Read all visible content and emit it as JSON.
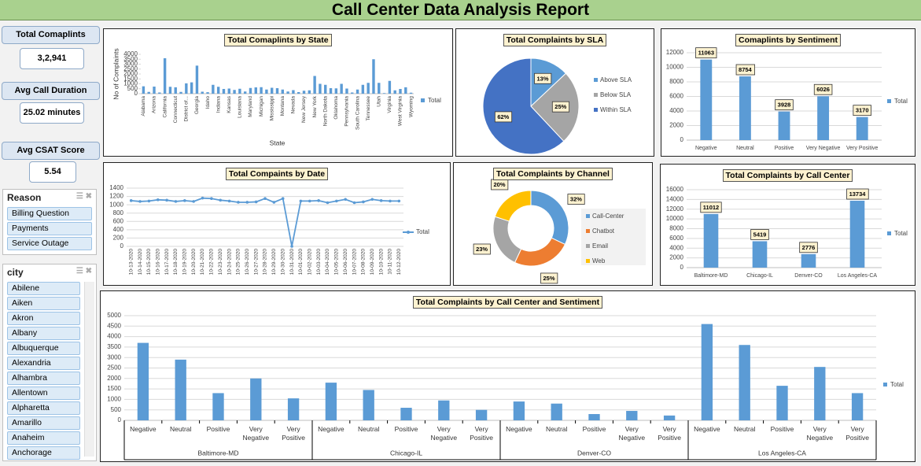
{
  "title": "Call Center Data Analysis Report",
  "kpis": [
    {
      "label": "Total Comaplints",
      "value": "3,2,941"
    },
    {
      "label": "Avg Call Duration",
      "value": "25.02 minutes"
    },
    {
      "label": "Avg CSAT Score",
      "value": "5.54"
    }
  ],
  "slicers": [
    {
      "title": "Reason",
      "items": [
        "Billing Question",
        "Payments",
        "Service Outage"
      ]
    },
    {
      "title": "city",
      "items": [
        "Abilene",
        "Aiken",
        "Akron",
        "Albany",
        "Albuquerque",
        "Alexandria",
        "Alhambra",
        "Allentown",
        "Alpharetta",
        "Amarillo",
        "Anaheim",
        "Anchorage"
      ]
    }
  ],
  "chart_data": [
    {
      "type": "bar",
      "title": "Total Comaplints by State",
      "y_label": "No of Complaints",
      "x_label": "State",
      "categories": [
        "Alabama",
        null,
        "Arizona",
        null,
        "California",
        null,
        "Connecticut",
        null,
        "District of...",
        null,
        "Georgia",
        null,
        "Idaho",
        null,
        "Indiana",
        null,
        "Kansas",
        null,
        "Louisiana",
        null,
        "Maryland",
        null,
        "Michigan",
        null,
        "Mississippi",
        null,
        "Montana",
        null,
        "Nevada",
        null,
        "New Jersey",
        null,
        "New York",
        null,
        "North Dakota",
        null,
        "Oklahoma",
        null,
        "Pennsylvania",
        null,
        "South Carolina",
        null,
        "Tennessee",
        null,
        "Utah",
        null,
        "Virginia",
        null,
        "West Virginia",
        null,
        "Wyoming"
      ],
      "series": [
        {
          "name": "Total",
          "color": "#5b9bd5",
          "values": [
            750,
            180,
            720,
            120,
            3600,
            700,
            650,
            180,
            1050,
            1150,
            2850,
            200,
            150,
            900,
            700,
            480,
            520,
            380,
            500,
            220,
            580,
            640,
            660,
            420,
            600,
            560,
            420,
            220,
            360,
            160,
            300,
            340,
            1800,
            1000,
            900,
            560,
            540,
            1000,
            520,
            120,
            420,
            900,
            1100,
            3500,
            1100,
            60,
            1300,
            340,
            480,
            650,
            100
          ]
        }
      ],
      "ylim": [
        0,
        4000
      ],
      "yticks": [
        0,
        500,
        1000,
        1500,
        2000,
        2500,
        3000,
        3500,
        4000
      ],
      "grid": false,
      "legend": "right"
    },
    {
      "type": "pie",
      "title": "Total Complaints by SLA",
      "categories": [
        "Above SLA",
        "Below SLA",
        "Within SLA"
      ],
      "values": [
        13,
        25,
        62
      ],
      "value_labels": [
        "13%",
        "25%",
        "62%"
      ],
      "colors": [
        "#5b9bd5",
        "#a5a5a5",
        "#4472c4"
      ],
      "legend": "right"
    },
    {
      "type": "bar",
      "title": "Comaplints by Sentiment",
      "categories": [
        "Negative",
        "Neutral",
        "Positive",
        "Very Negative",
        "Very Positive"
      ],
      "series": [
        {
          "name": "Total",
          "color": "#5b9bd5",
          "values": [
            11063,
            8754,
            3928,
            6026,
            3170
          ]
        }
      ],
      "ylim": [
        0,
        12000
      ],
      "yticks": [
        0,
        2000,
        4000,
        6000,
        8000,
        10000,
        12000
      ],
      "grid": true,
      "data_labels": true,
      "legend": "right"
    },
    {
      "type": "line",
      "title": "Total Compaints by Date",
      "categories": [
        "10-13-2020",
        "10-14-2020",
        "10-15-2020",
        "10-16-2020",
        "10-17-2020",
        "10-18-2020",
        "10-19-2020",
        "10-20-2020",
        "10-21-2020",
        "10-22-2020",
        "10-23-2020",
        "10-24-2020",
        "10-25-2020",
        "10-26-2020",
        "10-27-2020",
        "10-28-2020",
        "10-29-2020",
        "10-30-2020",
        "10-31-2020",
        "10-01-2020",
        "10-02-2020",
        "10-03-2020",
        "10-04-2020",
        "10-05-2020",
        "10-06-2020",
        "10-07-2020",
        "10-08-2020",
        "10-09-2020",
        "10-10-2020",
        "10-11-2020",
        "10-12-2020"
      ],
      "series": [
        {
          "name": "Total",
          "color": "#5b9bd5",
          "values": [
            1100,
            1080,
            1090,
            1120,
            1110,
            1080,
            1100,
            1080,
            1160,
            1150,
            1110,
            1090,
            1060,
            1060,
            1070,
            1150,
            1060,
            1150,
            0,
            1090,
            1090,
            1100,
            1050,
            1090,
            1130,
            1050,
            1070,
            1130,
            1100,
            1090,
            1090
          ]
        }
      ],
      "ylim": [
        0,
        1400
      ],
      "yticks": [
        0,
        200,
        400,
        600,
        800,
        1000,
        1200,
        1400
      ],
      "grid": true,
      "legend": "right"
    },
    {
      "type": "doughnut",
      "title": "Total Complaints by Channel",
      "categories": [
        "Call-Center",
        "Chatbot",
        "Email",
        "Web"
      ],
      "values": [
        32,
        25,
        23,
        20
      ],
      "value_labels": [
        "32%",
        "25%",
        "23%",
        "20%"
      ],
      "colors": [
        "#5b9bd5",
        "#ed7d31",
        "#a5a5a5",
        "#ffc000"
      ],
      "legend": "right"
    },
    {
      "type": "bar",
      "title": "Total Complaints by Call Center",
      "categories": [
        "Baltimore-MD",
        "Chicago-IL",
        "Denver-CO",
        "Los Angeles-CA"
      ],
      "series": [
        {
          "name": "Total",
          "color": "#5b9bd5",
          "values": [
            11012,
            5419,
            2776,
            13734
          ]
        }
      ],
      "ylim": [
        0,
        16000
      ],
      "yticks": [
        0,
        2000,
        4000,
        6000,
        8000,
        10000,
        12000,
        14000,
        16000
      ],
      "grid": true,
      "data_labels": true,
      "legend": "right"
    },
    {
      "type": "bar",
      "title": "Total Complaints by Call Center and Sentiment",
      "groups": [
        "Baltimore-MD",
        "Chicago-IL",
        "Denver-CO",
        "Los Angeles-CA"
      ],
      "categories": [
        [
          "Negative",
          "Neutral",
          "Positive",
          "Very Negative",
          "Very Positive"
        ],
        [
          "Negative",
          "Neutral",
          "Positive",
          "Very Negative",
          "Very Positive"
        ],
        [
          "Negative",
          "Neutral",
          "Positive",
          "Very Negative",
          "Very Positive"
        ],
        [
          "Negative",
          "Neutral",
          "Positive",
          "Very Negative",
          "Very Positive"
        ]
      ],
      "series": [
        {
          "name": "Total",
          "color": "#5b9bd5",
          "values": [
            [
              3700,
              2900,
              1300,
              2000,
              1050
            ],
            [
              1800,
              1450,
              600,
              950,
              500
            ],
            [
              900,
              800,
              300,
              450,
              230
            ],
            [
              4600,
              3600,
              1650,
              2550,
              1300
            ]
          ]
        }
      ],
      "ylim": [
        0,
        5000
      ],
      "yticks": [
        0,
        500,
        1000,
        1500,
        2000,
        2500,
        3000,
        3500,
        4000,
        4500,
        5000
      ],
      "grid": true,
      "legend": "right"
    }
  ]
}
